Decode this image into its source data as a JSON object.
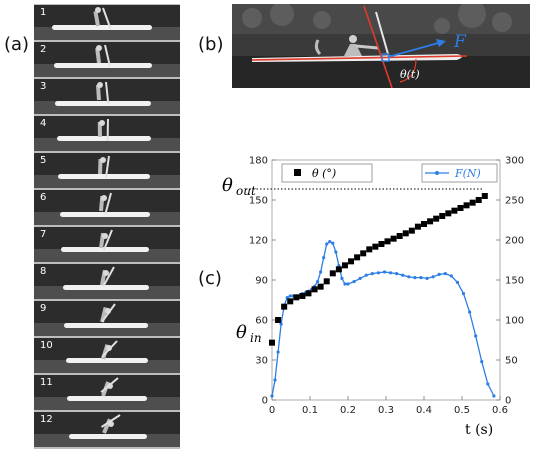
{
  "labels": {
    "panel_a": "(a)",
    "panel_b": "(b)",
    "panel_c": "(c)"
  },
  "frames": [
    "1",
    "2",
    "3",
    "4",
    "5",
    "6",
    "7",
    "8",
    "9",
    "10",
    "11",
    "12"
  ],
  "photo": {
    "force_label": "F",
    "angle_label": "θ(t)"
  },
  "annotations": {
    "theta_out": "θ",
    "theta_out_sub": "out",
    "theta_in": "θ",
    "theta_in_sub": "in"
  },
  "colors": {
    "force": "#2d7ee6",
    "angle": "#000000",
    "axis_line": "#e23a2a"
  },
  "chart_data": {
    "type": "line",
    "xlabel": "t (s)",
    "x_ticks": [
      "0",
      "0.1",
      "0.2",
      "0.3",
      "0.4",
      "0.5",
      "0.6"
    ],
    "xlim": [
      0,
      0.6
    ],
    "left_axis": {
      "ylim": [
        0,
        180
      ],
      "ticks": [
        "0",
        "30",
        "60",
        "90",
        "120",
        "150",
        "180"
      ]
    },
    "right_axis": {
      "ylim": [
        0,
        300
      ],
      "ticks": [
        "0",
        "50",
        "100",
        "150",
        "200",
        "250",
        "300"
      ]
    },
    "series": [
      {
        "name": "θ (°)",
        "axis": "left",
        "marker": "square",
        "color": "#000000",
        "x": [
          0,
          0.016,
          0.032,
          0.048,
          0.064,
          0.08,
          0.096,
          0.112,
          0.128,
          0.144,
          0.16,
          0.176,
          0.192,
          0.208,
          0.224,
          0.24,
          0.256,
          0.272,
          0.288,
          0.304,
          0.32,
          0.336,
          0.352,
          0.368,
          0.384,
          0.4,
          0.416,
          0.432,
          0.448,
          0.464,
          0.48,
          0.496,
          0.512,
          0.528,
          0.544,
          0.56
        ],
        "y": [
          43,
          60,
          70,
          74,
          77,
          78,
          80,
          83,
          85,
          89,
          95,
          98,
          101,
          104,
          107,
          110,
          113,
          115,
          117,
          119,
          121,
          123,
          125,
          127,
          130,
          132,
          134,
          136,
          138,
          140,
          142,
          144,
          146,
          148,
          150,
          153
        ]
      },
      {
        "name": "F(N)",
        "axis": "right",
        "marker": "dot",
        "color": "#2d7ee6",
        "x": [
          0,
          0.008,
          0.016,
          0.024,
          0.032,
          0.04,
          0.048,
          0.056,
          0.064,
          0.072,
          0.08,
          0.088,
          0.096,
          0.104,
          0.112,
          0.12,
          0.128,
          0.136,
          0.144,
          0.152,
          0.16,
          0.168,
          0.176,
          0.184,
          0.192,
          0.2,
          0.216,
          0.232,
          0.248,
          0.264,
          0.28,
          0.296,
          0.312,
          0.328,
          0.344,
          0.36,
          0.376,
          0.392,
          0.408,
          0.424,
          0.44,
          0.456,
          0.472,
          0.488,
          0.504,
          0.52,
          0.536,
          0.552,
          0.568,
          0.584
        ],
        "y": [
          5,
          25,
          60,
          95,
          118,
          128,
          130,
          130,
          128,
          130,
          133,
          134,
          136,
          138,
          142,
          148,
          160,
          178,
          195,
          198,
          196,
          185,
          168,
          152,
          145,
          145,
          148,
          152,
          156,
          158,
          159,
          160,
          159,
          158,
          156,
          154,
          153,
          153,
          152,
          154,
          157,
          158,
          155,
          147,
          133,
          110,
          80,
          48,
          20,
          5
        ]
      }
    ]
  }
}
